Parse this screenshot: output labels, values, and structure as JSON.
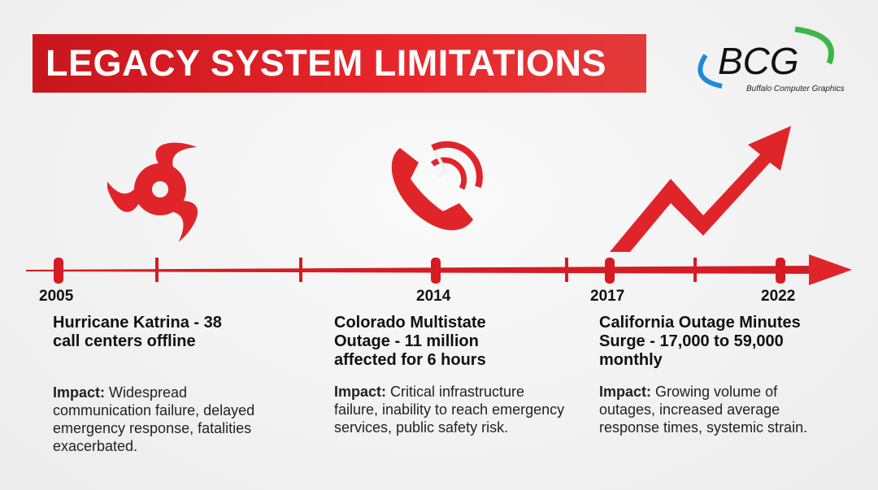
{
  "title": "LEGACY SYSTEM LIMITATIONS",
  "logo": {
    "text": "BCG",
    "subtitle": "Buffalo Computer Graphics"
  },
  "colors": {
    "accent": "#e0252a",
    "logo_blue": "#1f8ad6",
    "logo_green": "#3cb64a"
  },
  "timeline": {
    "years": [
      "2005",
      "2014",
      "2017",
      "2022"
    ]
  },
  "events": [
    {
      "icon": "hurricane-icon",
      "heading": "Hurricane Katrina - 38 call centers offline",
      "impact_label": "Impact:",
      "impact": " Widespread communication failure, delayed emergency response, fatalities exacerbated."
    },
    {
      "icon": "broken-phone-icon",
      "heading": "Colorado Multistate Outage - 11 million affected for 6 hours",
      "impact_label": "Impact:",
      "impact": " Critical infrastructure failure, inability to reach emergency services, public safety risk."
    },
    {
      "icon": "rising-arrow-icon",
      "heading": "California Outage Minutes Surge - 17,000 to 59,000 monthly",
      "impact_label": "Impact:",
      "impact": " Growing volume of outages, increased average response times, systemic strain."
    }
  ]
}
